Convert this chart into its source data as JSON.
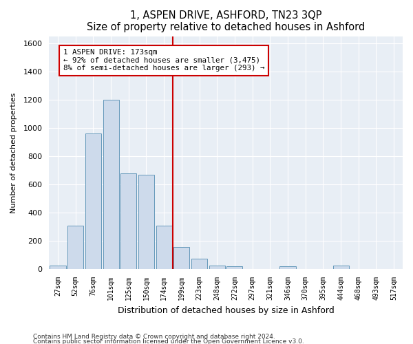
{
  "title": "1, ASPEN DRIVE, ASHFORD, TN23 3QP",
  "subtitle": "Size of property relative to detached houses in Ashford",
  "xlabel": "Distribution of detached houses by size in Ashford",
  "ylabel": "Number of detached properties",
  "bar_color": "#cddaeb",
  "bar_edge_color": "#6699bb",
  "background_color": "#e8eef5",
  "bins": [
    "27sqm",
    "52sqm",
    "76sqm",
    "101sqm",
    "125sqm",
    "150sqm",
    "174sqm",
    "199sqm",
    "223sqm",
    "248sqm",
    "272sqm",
    "297sqm",
    "321sqm",
    "346sqm",
    "370sqm",
    "395sqm",
    "444sqm",
    "468sqm",
    "493sqm",
    "517sqm"
  ],
  "values": [
    25,
    310,
    960,
    1200,
    680,
    670,
    310,
    155,
    75,
    25,
    20,
    0,
    0,
    20,
    0,
    0,
    25,
    0,
    0,
    0
  ],
  "ylim": [
    0,
    1650
  ],
  "yticks": [
    0,
    200,
    400,
    600,
    800,
    1000,
    1200,
    1400,
    1600
  ],
  "property_label": "1 ASPEN DRIVE: 173sqm",
  "arrow_left_text": "← 92% of detached houses are smaller (3,475)",
  "arrow_right_text": "8% of semi-detached houses are larger (293) →",
  "annotation_box_color": "#cc0000",
  "vline_color": "#cc0000",
  "vline_x": 6.5,
  "footer1": "Contains HM Land Registry data © Crown copyright and database right 2024.",
  "footer2": "Contains public sector information licensed under the Open Government Licence v3.0."
}
